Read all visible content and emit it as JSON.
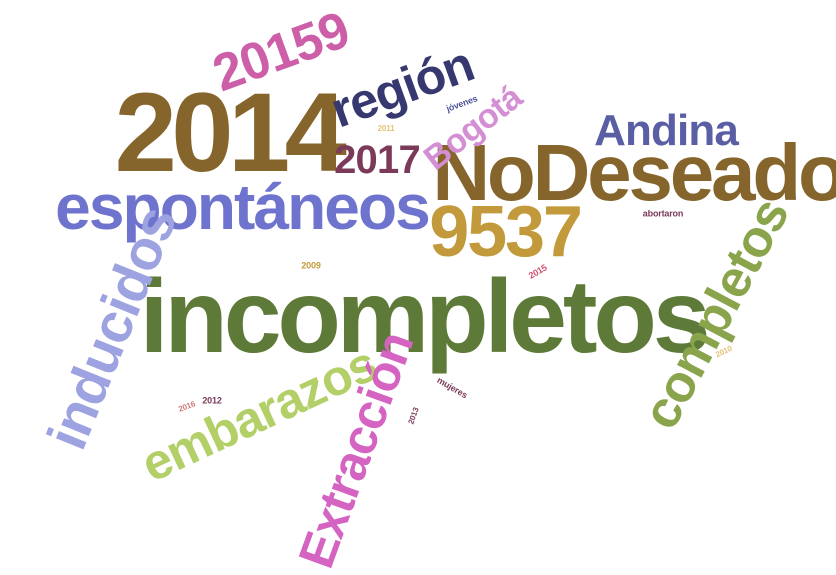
{
  "words": {
    "incompletos": {
      "text": "incompletos",
      "color": "#5e7a38"
    },
    "2014": {
      "text": "2014",
      "color": "#85652b"
    },
    "NoDeseado": {
      "text": "NoDeseado",
      "color": "#85652b"
    },
    "espontaneos": {
      "text": "espontáneos",
      "color": "#6e73cd"
    },
    "9537": {
      "text": "9537",
      "color": "#c39a3b"
    },
    "region": {
      "text": "región",
      "color": "#36386f"
    },
    "20159": {
      "text": "20159",
      "color": "#cc5fa8"
    },
    "2017": {
      "text": "2017",
      "color": "#7b3a5a"
    },
    "Andina": {
      "text": "Andina",
      "color": "#5a5fa5"
    },
    "Bogota": {
      "text": "Bogotá",
      "color": "#d48ed3"
    },
    "inducidos": {
      "text": "inducidos",
      "color": "#9da2e0"
    },
    "embarazos": {
      "text": "embarazos",
      "color": "#b3cf67"
    },
    "Extraccion": {
      "text": "Extracción",
      "color": "#d463c1"
    },
    "completos": {
      "text": "completos",
      "color": "#8aa44c"
    },
    "jovenes": {
      "text": "jóvenes",
      "color": "#4e5296"
    },
    "abortaron": {
      "text": "abortaron",
      "color": "#7b3a5a"
    },
    "mujeres": {
      "text": "mujeres",
      "color": "#7b3a5a"
    },
    "y2011": {
      "text": "2011",
      "color": "#e6c27a"
    },
    "y2009": {
      "text": "2009",
      "color": "#c39a3b"
    },
    "y2015": {
      "text": "2015",
      "color": "#d04e6e"
    },
    "y2010": {
      "text": "2010",
      "color": "#e6c27a"
    },
    "y2016": {
      "text": "2016",
      "color": "#d07a7a"
    },
    "y2012": {
      "text": "2012",
      "color": "#7b3a5a"
    },
    "y2013": {
      "text": "2013",
      "color": "#7b3a5a"
    }
  }
}
